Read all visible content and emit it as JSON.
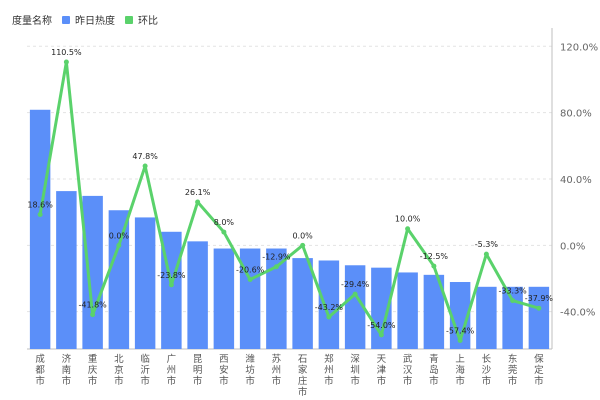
{
  "legend": {
    "title": "度量名称",
    "items": [
      {
        "label": "昨日热度",
        "color": "#5B8FF9"
      },
      {
        "label": "环比",
        "color": "#5AD26B"
      }
    ]
  },
  "chart_data": {
    "type": "bar",
    "categories": [
      "成都市",
      "济南市",
      "重庆市",
      "北京市",
      "临沂市",
      "广州市",
      "昆明市",
      "西安市",
      "潍坊市",
      "苏州市",
      "石家庄市",
      "郑州市",
      "深圳市",
      "天津市",
      "武汉市",
      "青岛市",
      "上海市",
      "长沙市",
      "东莞市",
      "保定市"
    ],
    "series": [
      {
        "name": "昨日热度",
        "type": "bar",
        "color": "#5B8FF9",
        "values": [
          100,
          66,
          64,
          58,
          55,
          49,
          45,
          42,
          42,
          42,
          38,
          37,
          35,
          34,
          32,
          31,
          28,
          26,
          26,
          26
        ]
      },
      {
        "name": "环比",
        "type": "line",
        "axis": "right",
        "color": "#5AD26B",
        "values": [
          18.6,
          110.5,
          -41.8,
          0.0,
          47.8,
          -23.8,
          26.1,
          8.0,
          -20.6,
          -12.9,
          0.0,
          -43.2,
          -29.4,
          -54.0,
          10.0,
          -12.5,
          -57.4,
          -5.3,
          -33.3,
          -37.9
        ],
        "labels": [
          "18.6%",
          "110.5%",
          "-41.8%",
          "0.0%",
          "47.8%",
          "-23.8%",
          "26.1%",
          "8.0%",
          "-20.6%",
          "-12.9%",
          "0.0%",
          "-43.2%",
          "-29.4%",
          "-54.0%",
          "10.0%",
          "-12.5%",
          "-57.4%",
          "-5.3%",
          "-33.3%",
          "-37.9%"
        ]
      }
    ],
    "left_ylim": [
      0,
      130
    ],
    "right_ylim": [
      -62.5,
      125
    ],
    "right_ticks": [
      {
        "value": 120,
        "label": "120.0%"
      },
      {
        "value": 80,
        "label": "80.0%"
      },
      {
        "value": 40,
        "label": "40.0%"
      },
      {
        "value": 0,
        "label": "0.0%"
      },
      {
        "value": -40,
        "label": "-40.0%"
      }
    ],
    "grid": true,
    "legend_position": "top-left"
  }
}
